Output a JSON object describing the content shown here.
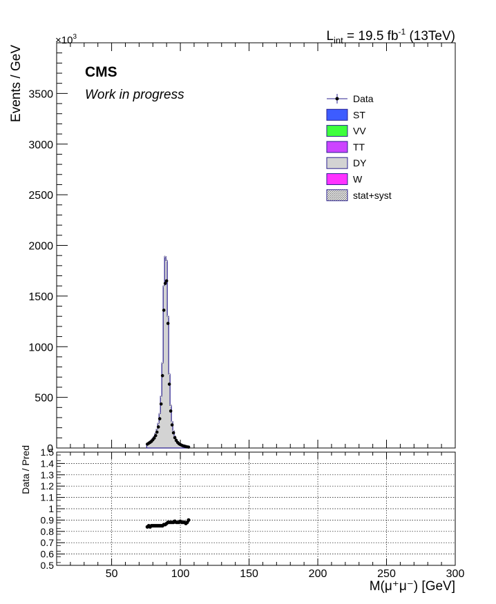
{
  "header": {
    "scale_base": "×10",
    "scale_exp": "3",
    "lumi_L": "L",
    "lumi_sub": "int",
    "lumi_eq": " = 19.5 fb",
    "lumi_sup": "-1",
    "lumi_tail": " (13TeV)"
  },
  "cms_label": "CMS",
  "wip_label": "Work in progress",
  "colors": {
    "ST": "#3d5cff",
    "VV": "#3dff3d",
    "TT": "#cc44ff",
    "DY": "#d3d3d3",
    "W": "#ff33ff",
    "outline": "#2a1f8f"
  },
  "legend": [
    {
      "label": "Data",
      "style": "marker"
    },
    {
      "label": "ST",
      "style": "box",
      "color": "#3d5cff"
    },
    {
      "label": "VV",
      "style": "box",
      "color": "#3dff3d"
    },
    {
      "label": "TT",
      "style": "box",
      "color": "#cc44ff"
    },
    {
      "label": "DY",
      "style": "box",
      "color": "#d3d3d3"
    },
    {
      "label": "W",
      "style": "box",
      "color": "#ff33ff"
    },
    {
      "label": "stat+syst",
      "style": "hatch"
    }
  ],
  "chart_data": [
    {
      "type": "area",
      "ylabel": "Events / GeV",
      "xlim": [
        10,
        300
      ],
      "ylim": [
        0,
        4000
      ],
      "y_ticks": [
        0,
        500,
        1000,
        1500,
        2000,
        2500,
        3000,
        3500
      ],
      "y_tick_labels": [
        "0",
        "500",
        "1000",
        "1500",
        "2000",
        "2500",
        "3000",
        "3500"
      ],
      "series": [
        {
          "name": "DY",
          "x": [
            76,
            77,
            78,
            79,
            80,
            81,
            82,
            83,
            84,
            85,
            86,
            87,
            88,
            89,
            90,
            91,
            92,
            93,
            94,
            95,
            96,
            97,
            98,
            99,
            100,
            101,
            102,
            103,
            104,
            105,
            106
          ],
          "values": [
            45,
            55,
            65,
            78,
            95,
            115,
            145,
            185,
            245,
            340,
            510,
            840,
            1600,
            1890,
            1850,
            1300,
            730,
            420,
            260,
            170,
            115,
            85,
            62,
            48,
            38,
            30,
            24,
            20,
            16,
            13,
            10
          ]
        },
        {
          "name": "Data",
          "x": [
            76,
            77,
            78,
            79,
            80,
            81,
            82,
            83,
            84,
            85,
            86,
            87,
            88,
            89,
            90,
            91,
            92,
            93,
            94,
            95,
            96,
            97,
            98,
            99,
            100,
            101,
            102,
            103,
            104,
            105,
            106
          ],
          "values": [
            38,
            47,
            55,
            66,
            81,
            98,
            123,
            157,
            208,
            289,
            434,
            714,
            1360,
            1625,
            1650,
            1230,
            630,
            365,
            228,
            150,
            102,
            75,
            55,
            42,
            34,
            27,
            21,
            18,
            14,
            11,
            9
          ]
        }
      ]
    },
    {
      "type": "scatter",
      "xlabel": "M(μ⁺μ⁻) [GeV]",
      "ylabel": "Data / Pred",
      "xlim": [
        10,
        300
      ],
      "ylim": [
        0.5,
        1.5
      ],
      "x_ticks": [
        50,
        100,
        150,
        200,
        250,
        300
      ],
      "x_tick_labels": [
        "50",
        "100",
        "150",
        "200",
        "250",
        "300"
      ],
      "y_ticks": [
        0.5,
        0.6,
        0.7,
        0.8,
        0.9,
        1.0,
        1.1,
        1.2,
        1.3,
        1.4,
        1.5
      ],
      "y_tick_labels": [
        "0.5",
        "0.6",
        "0.7",
        "0.8",
        "0.9",
        "1",
        "1.1",
        "1.2",
        "1.3",
        "1.4",
        "1.5"
      ],
      "grid": true,
      "series": [
        {
          "name": "Data",
          "x": [
            76,
            77,
            78,
            79,
            80,
            81,
            82,
            83,
            84,
            85,
            86,
            87,
            88,
            89,
            90,
            91,
            92,
            93,
            94,
            95,
            96,
            97,
            98,
            99,
            100,
            101,
            102,
            103,
            104,
            105,
            106
          ],
          "values": [
            0.84,
            0.85,
            0.84,
            0.85,
            0.85,
            0.85,
            0.85,
            0.85,
            0.85,
            0.85,
            0.85,
            0.85,
            0.86,
            0.86,
            0.87,
            0.88,
            0.88,
            0.88,
            0.88,
            0.88,
            0.89,
            0.88,
            0.88,
            0.88,
            0.89,
            0.88,
            0.88,
            0.88,
            0.87,
            0.88,
            0.9
          ]
        }
      ]
    }
  ]
}
